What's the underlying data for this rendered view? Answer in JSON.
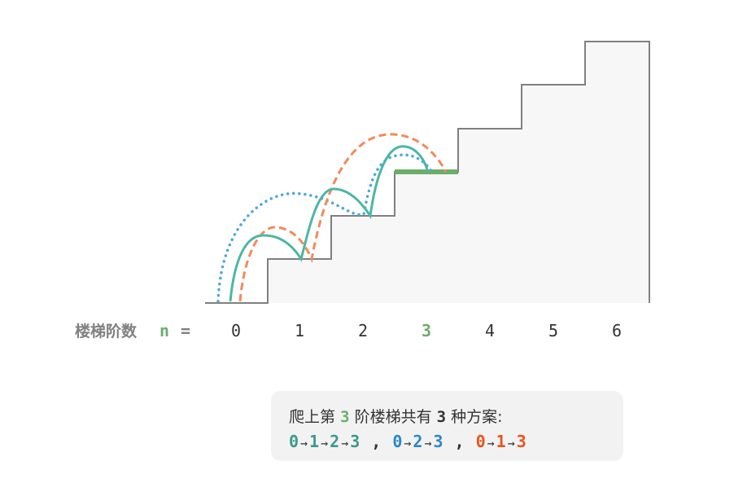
{
  "colors": {
    "teal": "#4db6a5",
    "orange": "#f08b5b",
    "blue": "#4ea5e0",
    "green": "#6aae6a",
    "stair": "#808080",
    "stair_fill": "#f7f7f7",
    "text": "#333333",
    "label_gray": "#808080",
    "seq_teal": "#3a9a8c",
    "seq_blue": "#2a88c8",
    "seq_orange": "#e8531e"
  },
  "axis": {
    "label": "楼梯阶数",
    "var": "n",
    "eq": "=",
    "steps": [
      "0",
      "1",
      "2",
      "3",
      "4",
      "5",
      "6"
    ],
    "highlight_index": 3
  },
  "caption": {
    "prefix": "爬上第",
    "n": "3",
    "mid": "阶楼梯共有",
    "count": "3",
    "suffix": "种方案:",
    "sequences": [
      {
        "steps": [
          "0",
          "1",
          "2",
          "3"
        ],
        "color": "#3a9a8c"
      },
      {
        "steps": [
          "0",
          "2",
          "3"
        ],
        "color": "#2a88c8"
      },
      {
        "steps": [
          "0",
          "1",
          "3"
        ],
        "color": "#e8531e"
      }
    ],
    "arrow": "→",
    "separator": ","
  }
}
